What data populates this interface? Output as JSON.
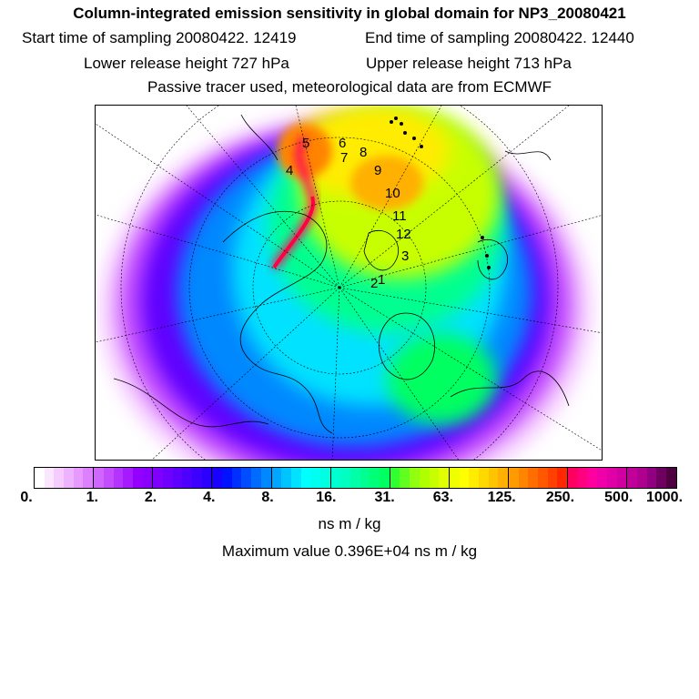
{
  "title": "Column-integrated emission sensitivity in global domain for NP3_20080421",
  "start_time": "Start time of sampling 20080422. 12419",
  "end_time": "End time of sampling 20080422. 12440",
  "lower_height": "Lower release height  727 hPa",
  "upper_height": "Upper release height  713 hPa",
  "tracer_note": "Passive tracer used, meteorological data are from ECMWF",
  "colorbar": {
    "ticks": [
      "0.",
      "1.",
      "2.",
      "4.",
      "8.",
      "16.",
      "31.",
      "63.",
      "125.",
      "250.",
      "500.",
      "1000."
    ],
    "colors": [
      "#ffffff",
      "#fbe6ff",
      "#f5ccff",
      "#eeb3ff",
      "#e699ff",
      "#dc80ff",
      "#d066ff",
      "#c34cff",
      "#b533ff",
      "#a51aff",
      "#9400ff",
      "#8a00ff",
      "#8000ff",
      "#6f00ff",
      "#5e00ff",
      "#4d00ff",
      "#3c00ff",
      "#2b00ff",
      "#1a00ff",
      "#0012ff",
      "#0030ff",
      "#004eff",
      "#006cff",
      "#0088ff",
      "#00a6ff",
      "#00c4ff",
      "#00e2ff",
      "#00ffff",
      "#00fff0",
      "#00ffe0",
      "#00ffd0",
      "#00ffc0",
      "#00ffa8",
      "#00ff90",
      "#00ff78",
      "#00ff60",
      "#30ff30",
      "#60ff20",
      "#90ff10",
      "#b0ff00",
      "#c8ff00",
      "#e0ff00",
      "#f0ff00",
      "#ffff00",
      "#ffec00",
      "#ffd800",
      "#ffc400",
      "#ffb000",
      "#ff9a00",
      "#ff8400",
      "#ff6e00",
      "#ff5800",
      "#ff4000",
      "#ff2800",
      "#ff0060",
      "#ff0080",
      "#ff00a0",
      "#f000a8",
      "#e000a8",
      "#d000a0",
      "#c00098",
      "#b00090",
      "#900080",
      "#700060",
      "#500040"
    ],
    "unit": "ns m / kg"
  },
  "max_value": "Maximum value  0.396E+04 ns m / kg",
  "trajectory_labels": [
    "1",
    "2",
    "3",
    "4",
    "5",
    "6",
    "7",
    "8",
    "9",
    "10",
    "11",
    "12"
  ],
  "map": {
    "projection": "polar-stereographic-north",
    "highlight_color": "#ff0040"
  }
}
